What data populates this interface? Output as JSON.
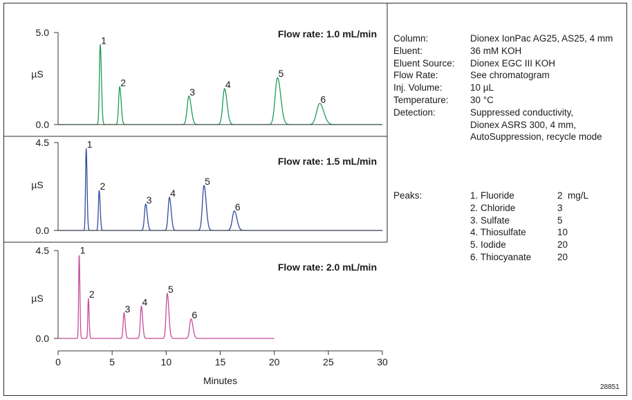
{
  "chart_data": {
    "type": "line",
    "x_min": 0,
    "x_max": 30,
    "x_ticks": [
      "0",
      "5",
      "10",
      "15",
      "20",
      "25",
      "30"
    ],
    "x_tick_values": [
      0,
      5,
      10,
      15,
      20,
      25,
      30
    ],
    "xlabel": "Minutes",
    "ylabel": "µS",
    "panels": [
      {
        "title": "Flow rate: 1.0 mL/min",
        "color": "#1e9a55",
        "y_min": 0,
        "y_max": 5.0,
        "y_tick_labels": [
          "0.0",
          "5.0"
        ],
        "x_end": 30,
        "peaks": [
          {
            "label": "1",
            "time": 3.9,
            "height": 4.35,
            "width": 0.08
          },
          {
            "label": "2",
            "time": 5.7,
            "height": 2.05,
            "width": 0.1
          },
          {
            "label": "3",
            "time": 12.1,
            "height": 1.55,
            "width": 0.16
          },
          {
            "label": "4",
            "time": 15.4,
            "height": 1.95,
            "width": 0.17
          },
          {
            "label": "5",
            "time": 20.3,
            "height": 2.55,
            "width": 0.22
          },
          {
            "label": "6",
            "time": 24.2,
            "height": 1.15,
            "width": 0.28
          }
        ]
      },
      {
        "title": "Flow rate: 1.5 mL/min",
        "color": "#2e4aa0",
        "y_min": 0,
        "y_max": 4.5,
        "y_tick_labels": [
          "0.0",
          "4.5"
        ],
        "x_end": 30,
        "peaks": [
          {
            "label": "1",
            "time": 2.6,
            "height": 4.2,
            "width": 0.06
          },
          {
            "label": "2",
            "time": 3.8,
            "height": 2.05,
            "width": 0.07
          },
          {
            "label": "3",
            "time": 8.1,
            "height": 1.35,
            "width": 0.11
          },
          {
            "label": "4",
            "time": 10.3,
            "height": 1.7,
            "width": 0.12
          },
          {
            "label": "5",
            "time": 13.5,
            "height": 2.3,
            "width": 0.15
          },
          {
            "label": "6",
            "time": 16.3,
            "height": 1.0,
            "width": 0.18
          }
        ]
      },
      {
        "title": "Flow rate: 2.0 mL/min",
        "color": "#c54b9c",
        "y_min": 0,
        "y_max": 4.5,
        "y_tick_labels": [
          "0.0",
          "4.5"
        ],
        "x_end": 20,
        "peaks": [
          {
            "label": "1",
            "time": 1.95,
            "height": 4.3,
            "width": 0.05
          },
          {
            "label": "2",
            "time": 2.8,
            "height": 2.05,
            "width": 0.05
          },
          {
            "label": "3",
            "time": 6.1,
            "height": 1.3,
            "width": 0.08
          },
          {
            "label": "4",
            "time": 7.7,
            "height": 1.65,
            "width": 0.09
          },
          {
            "label": "5",
            "time": 10.1,
            "height": 2.3,
            "width": 0.11
          },
          {
            "label": "6",
            "time": 12.3,
            "height": 1.0,
            "width": 0.13
          }
        ]
      }
    ]
  },
  "conditions": [
    {
      "label": "Column:",
      "value": "Dionex IonPac AG25, AS25, 4 mm"
    },
    {
      "label": "Eluent:",
      "value": "36 mM KOH"
    },
    {
      "label": "Eluent Source:",
      "value": "Dionex EGC III KOH"
    },
    {
      "label": "Flow Rate:",
      "value": "See chromatogram"
    },
    {
      "label": "Inj. Volume:",
      "value": "10 µL"
    },
    {
      "label": "Temperature:",
      "value": "30 °C"
    },
    {
      "label": "Detection:",
      "value": "Suppressed conductivity,"
    },
    {
      "label": "",
      "value": "Dionex ASRS 300, 4 mm,"
    },
    {
      "label": "",
      "value": "AutoSuppression, recycle mode"
    }
  ],
  "peaks_title": "Peaks:",
  "peaks_table": [
    {
      "name": "1. Fluoride",
      "conc": "2  mg/L"
    },
    {
      "name": "2. Chloride",
      "conc": "3"
    },
    {
      "name": "3. Sulfate",
      "conc": "5"
    },
    {
      "name": "4. Thiosulfate",
      "conc": "10"
    },
    {
      "name": "5. Iodide",
      "conc": "20"
    },
    {
      "name": "6. Thiocyanate",
      "conc": "20"
    }
  ],
  "figure_id": "28851"
}
